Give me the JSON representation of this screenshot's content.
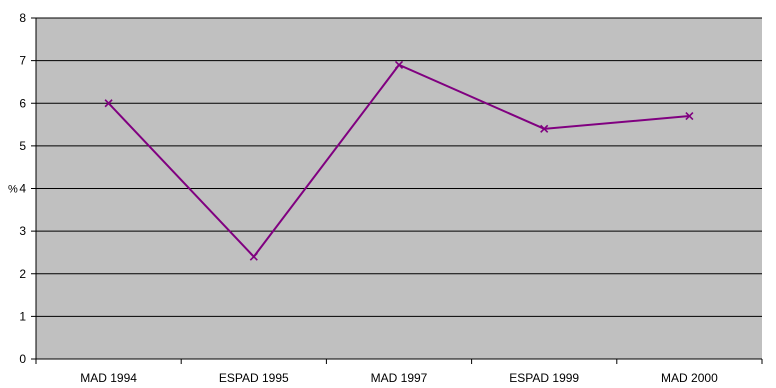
{
  "chart_data": {
    "type": "line",
    "categories": [
      "MAD 1994",
      "ESPAD 1995",
      "MAD 1997",
      "ESPAD 1999",
      "MAD 2000"
    ],
    "series": [
      {
        "values": [
          6.0,
          2.4,
          6.9,
          5.4,
          5.7
        ]
      }
    ],
    "xlabel": "",
    "ylabel": "%",
    "ylim": [
      0,
      8
    ],
    "yticks": [
      0,
      1,
      2,
      3,
      4,
      5,
      6,
      7,
      8
    ],
    "grid": true,
    "legend": "none",
    "colors": {
      "plot_background": "#c0c0c0",
      "gridline": "#000000",
      "series_line": "#800080"
    }
  }
}
